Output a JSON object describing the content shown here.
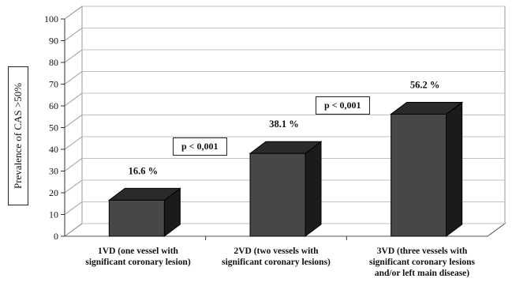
{
  "chart_data": {
    "type": "bar",
    "categories": [
      "1VD (one vessel with\nsignificant coronary lesion)",
      "2VD (two vessels with\nsignificant coronary lesions)",
      "3VD (three vessels with\nsignificant coronary lesions\nand/or left main disease)"
    ],
    "values": [
      16.6,
      38.1,
      56.2
    ],
    "data_labels": [
      "16.6 %",
      "38.1 %",
      "56.2 %"
    ],
    "ylabel": "Prevalence of CAS >50%",
    "ylim": [
      0,
      100
    ],
    "yticks": [
      0,
      10,
      20,
      30,
      40,
      50,
      60,
      70,
      80,
      90,
      100
    ],
    "ytick_labels": [
      "0",
      "10",
      "20",
      "30",
      "40",
      "50",
      "60",
      "70",
      "80",
      "90",
      "100"
    ],
    "grid": true,
    "style": "3d",
    "annotations": [
      "p < 0,001",
      "p < 0,001"
    ],
    "colors": {
      "bar_front": "#474747",
      "bar_side": "#1b1b1b",
      "bar_top": "#2a2a2a",
      "grid": "#bfbfbf"
    }
  }
}
